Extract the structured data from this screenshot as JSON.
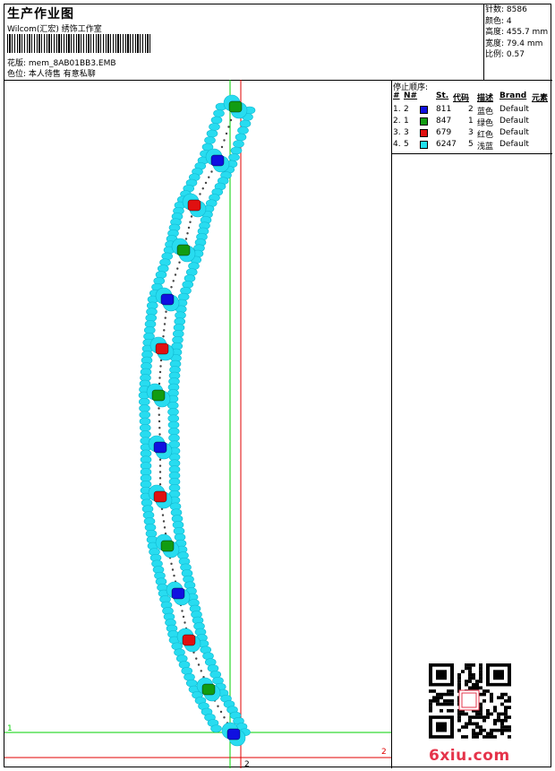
{
  "header": {
    "title": "生产作业图",
    "company": "Wilcom(汇宏) 绣饰工作室",
    "file_label": "花版: mem_8AB01BB3.EMB",
    "color_position": "色位: 本人待售 有意私聊"
  },
  "stats": [
    {
      "label": "针数",
      "value": "8586"
    },
    {
      "label": "颜色",
      "value": "4"
    },
    {
      "label": "高度",
      "value": "455.7 mm"
    },
    {
      "label": "宽度",
      "value": "79.4 mm"
    },
    {
      "label": "比例",
      "value": "0.57"
    }
  ],
  "stop_sequence": {
    "title": "停止顺序:",
    "headers": [
      "#",
      "N#",
      "St.",
      "代码",
      "描述",
      "Brand",
      "元素"
    ],
    "rows": [
      {
        "index": "1.",
        "n": "2",
        "color": "#1010e0",
        "stitches": "811",
        "code": "2",
        "desc": "蓝色",
        "brand": "Default"
      },
      {
        "index": "2.",
        "n": "1",
        "color": "#129c12",
        "stitches": "847",
        "code": "1",
        "desc": "绿色",
        "brand": "Default"
      },
      {
        "index": "3.",
        "n": "3",
        "color": "#e01010",
        "stitches": "679",
        "code": "3",
        "desc": "红色",
        "brand": "Default"
      },
      {
        "index": "4.",
        "n": "5",
        "color": "#20e0f0",
        "stitches": "6247",
        "code": "5",
        "desc": "浅蓝",
        "brand": "Default"
      }
    ]
  },
  "guides": {
    "green_label": "1",
    "red_label": "2",
    "red_label_bottom": "2"
  },
  "watermark": "6xiu.com",
  "colors": {
    "cyan": "#28dcf0",
    "blue": "#1010e0",
    "green": "#129c12",
    "red": "#e01010",
    "guide_green": "#00d000",
    "guide_red": "#e00000"
  }
}
